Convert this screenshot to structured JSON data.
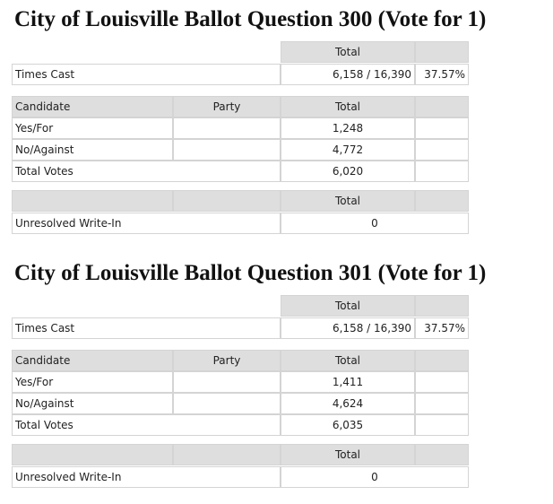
{
  "sections": [
    {
      "title": "City of Louisville Ballot Question 300 (Vote for  1)",
      "times_cast": {
        "header": "Total",
        "label": "Times Cast",
        "value": "6,158 / 16,390",
        "percent": "37.57%"
      },
      "candidates": {
        "headers": [
          "Candidate",
          "Party",
          "Total"
        ],
        "rows": [
          [
            "Yes/For",
            "1,248"
          ],
          [
            "No/Against",
            "4,772"
          ],
          [
            "Total Votes",
            "6,020"
          ]
        ]
      },
      "write_in": {
        "header": "Total",
        "label": "Unresolved Write-In",
        "value": "0"
      }
    },
    {
      "title": "City of Louisville Ballot Question 301 (Vote for  1)",
      "times_cast": {
        "header": "Total",
        "label": "Times Cast",
        "value": "6,158 / 16,390",
        "percent": "37.57%"
      },
      "candidates": {
        "headers": [
          "Candidate",
          "Party",
          "Total"
        ],
        "rows": [
          [
            "Yes/For",
            "1,411"
          ],
          [
            "No/Against",
            "4,624"
          ],
          [
            "Total Votes",
            "6,035"
          ]
        ]
      },
      "write_in": {
        "header": "Total",
        "label": "Unresolved Write-In",
        "value": "0"
      }
    }
  ]
}
